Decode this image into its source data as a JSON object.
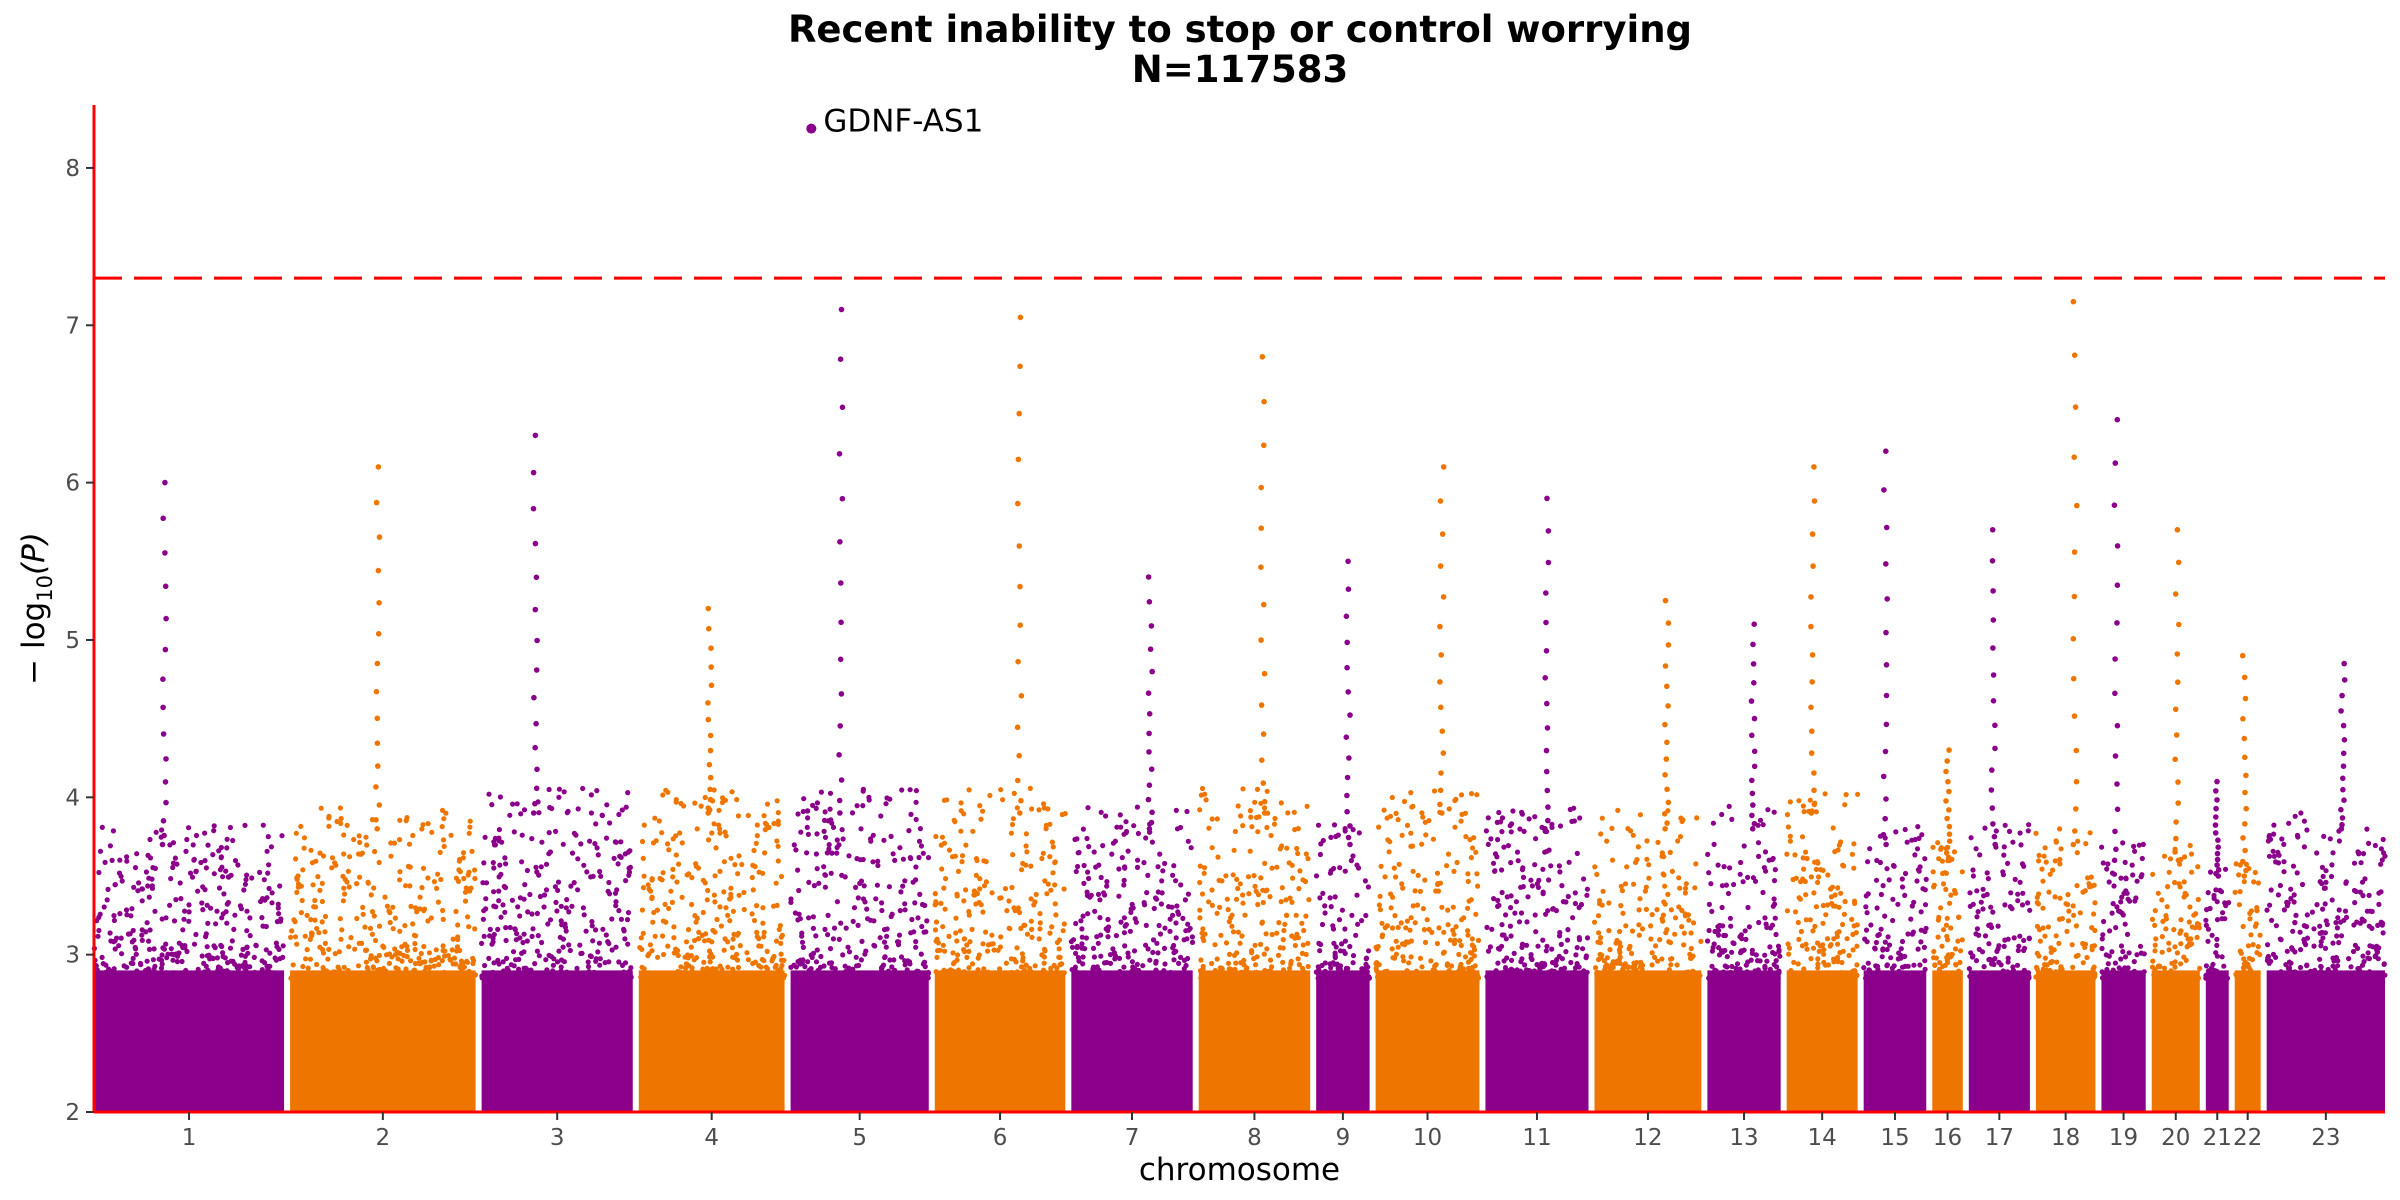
{
  "chart_data": {
    "type": "scatter",
    "subtype": "manhattan",
    "title": "Recent inability to stop or control worrying",
    "subtitle": "N=117583",
    "xlabel": "chromosome",
    "ylabel_parts": {
      "prefix": "− log",
      "subscript": "10",
      "suffix": "(P)"
    },
    "ylim": [
      2,
      8.4
    ],
    "yticks": [
      2,
      3,
      4,
      5,
      6,
      7,
      8
    ],
    "ytick_labels": [
      "2",
      "3",
      "4",
      "5",
      "6",
      "7",
      "8"
    ],
    "significance_threshold": 7.3,
    "colors": {
      "odd": "#8B008B",
      "even": "#EE7600",
      "threshold": "#FF0000",
      "axis": "#FF0000"
    },
    "chromosomes": [
      {
        "label": "1",
        "length": 249,
        "peak": 6.0,
        "base": 3.7
      },
      {
        "label": "2",
        "length": 243,
        "peak": 6.1,
        "base": 3.8
      },
      {
        "label": "3",
        "length": 198,
        "peak": 6.3,
        "base": 3.9
      },
      {
        "label": "4",
        "length": 191,
        "peak": 5.2,
        "base": 3.9
      },
      {
        "label": "5",
        "length": 181,
        "peak": 7.1,
        "base": 3.9
      },
      {
        "label": "6",
        "length": 171,
        "peak": 7.05,
        "base": 3.9
      },
      {
        "label": "7",
        "length": 159,
        "peak": 5.4,
        "base": 3.8
      },
      {
        "label": "8",
        "length": 146,
        "peak": 6.8,
        "base": 3.9
      },
      {
        "label": "9",
        "length": 70,
        "peak": 5.5,
        "base": 3.7
      },
      {
        "label": "10",
        "length": 136,
        "peak": 6.1,
        "base": 3.9
      },
      {
        "label": "11",
        "length": 135,
        "peak": 5.9,
        "base": 3.8
      },
      {
        "label": "12",
        "length": 140,
        "peak": 5.25,
        "base": 3.8
      },
      {
        "label": "13",
        "length": 96,
        "peak": 5.1,
        "base": 3.8
      },
      {
        "label": "14",
        "length": 93,
        "peak": 6.1,
        "base": 3.9
      },
      {
        "label": "15",
        "length": 82,
        "peak": 6.2,
        "base": 3.7
      },
      {
        "label": "16",
        "length": 40,
        "peak": 4.3,
        "base": 3.6
      },
      {
        "label": "17",
        "length": 80,
        "peak": 5.7,
        "base": 3.7
      },
      {
        "label": "18",
        "length": 78,
        "peak": 7.15,
        "base": 3.7
      },
      {
        "label": "19",
        "length": 58,
        "peak": 6.4,
        "base": 3.6
      },
      {
        "label": "20",
        "length": 63,
        "peak": 5.7,
        "base": 3.6
      },
      {
        "label": "21",
        "length": 30,
        "peak": 4.1,
        "base": 3.5
      },
      {
        "label": "22",
        "length": 34,
        "peak": 4.9,
        "base": 3.5
      },
      {
        "label": "23",
        "length": 155,
        "peak": 4.85,
        "base": 3.8
      }
    ],
    "top_hit": {
      "label": "GDNF-AS1",
      "chromosome": "5",
      "value": 8.25
    }
  }
}
